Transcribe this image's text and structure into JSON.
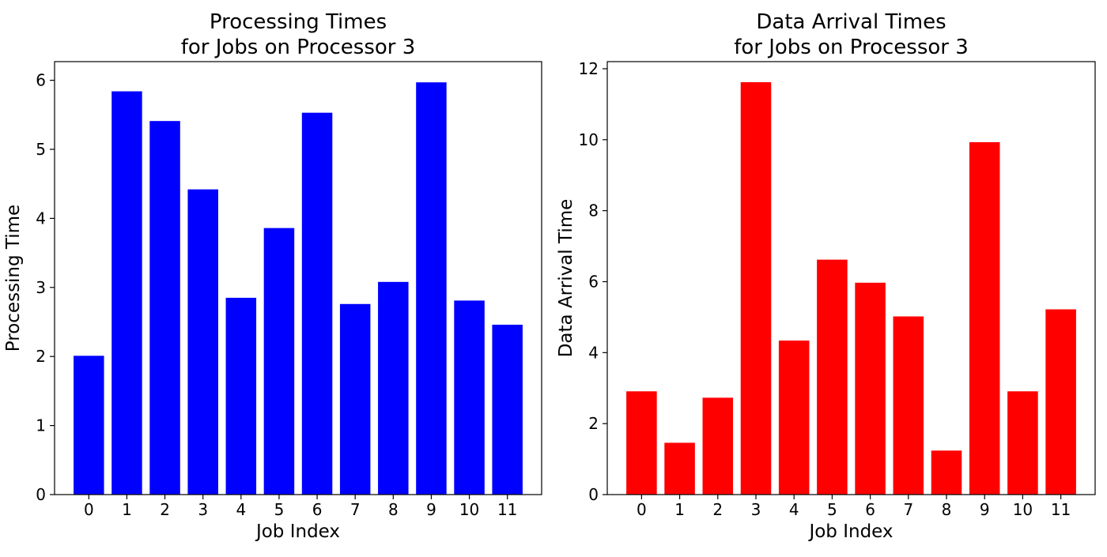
{
  "chart_data": [
    {
      "type": "bar",
      "title_lines": [
        "Processing Times",
        "for Jobs on Processor 3"
      ],
      "xlabel": "Job Index",
      "ylabel": "Processing Time",
      "categories": [
        "0",
        "1",
        "2",
        "3",
        "4",
        "5",
        "6",
        "7",
        "8",
        "9",
        "10",
        "11"
      ],
      "values": [
        2.01,
        5.84,
        5.41,
        4.42,
        2.85,
        3.86,
        5.53,
        2.76,
        3.08,
        5.97,
        2.81,
        2.46
      ],
      "ylim": [
        0,
        6.27
      ],
      "yticks": [
        "0",
        "1",
        "2",
        "3",
        "4",
        "5",
        "6"
      ],
      "color": "#0000ff",
      "grid": false
    },
    {
      "type": "bar",
      "title_lines": [
        "Data Arrival Times",
        "for Jobs on Processor 3"
      ],
      "xlabel": "Job Index",
      "ylabel": "Data Arrival Time",
      "categories": [
        "0",
        "1",
        "2",
        "3",
        "4",
        "5",
        "6",
        "7",
        "8",
        "9",
        "10",
        "11"
      ],
      "values": [
        2.91,
        1.46,
        2.73,
        11.62,
        4.34,
        6.62,
        5.97,
        5.02,
        1.24,
        9.93,
        2.91,
        5.22
      ],
      "ylim": [
        0,
        12.2
      ],
      "yticks": [
        "0",
        "2",
        "4",
        "6",
        "8",
        "10",
        "12"
      ],
      "color": "#ff0000",
      "grid": false
    }
  ]
}
